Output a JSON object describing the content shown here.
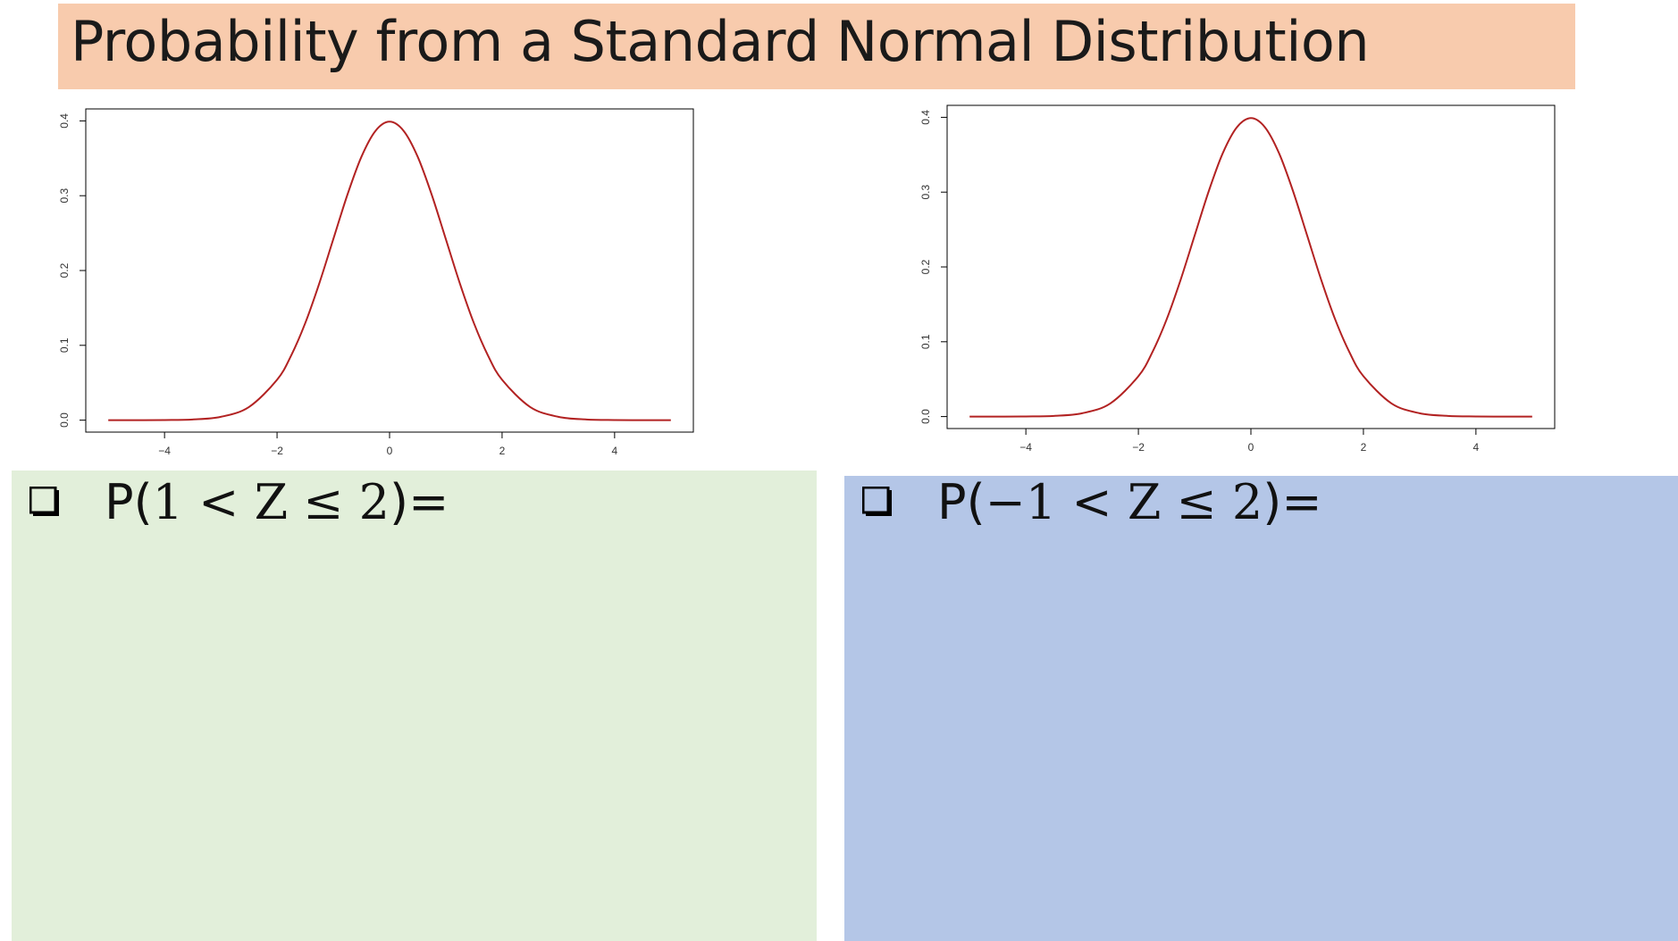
{
  "title": "Probability from a Standard Normal Distribution",
  "colors": {
    "title_bg": "#f8cbad",
    "curve": "#b22222",
    "panel_left_bg": "#e2efda",
    "panel_right_bg": "#b4c6e7"
  },
  "chart_data": [
    {
      "type": "line",
      "title": "",
      "xlabel": "",
      "ylabel": "",
      "xlim": [
        -5.4,
        5.4
      ],
      "ylim": [
        0,
        0.4
      ],
      "x_ticks": [
        "-4",
        "-2",
        "0",
        "2",
        "4"
      ],
      "y_ticks": [
        "0.0",
        "0.1",
        "0.2",
        "0.3",
        "0.4"
      ],
      "grid": false,
      "series": [
        {
          "color": "#b22222",
          "x": [
            -5,
            -4.5,
            -4,
            -3.5,
            -3,
            -2.5,
            -2,
            -1.75,
            -1.5,
            -1.25,
            -1,
            -0.75,
            -0.5,
            -0.25,
            0,
            0.25,
            0.5,
            0.75,
            1,
            1.25,
            1.5,
            1.75,
            2,
            2.5,
            3,
            3.5,
            4,
            4.5,
            5
          ],
          "y": [
            1.5e-06,
            1.6e-05,
            0.000134,
            0.000873,
            0.004432,
            0.017528,
            0.053991,
            0.086277,
            0.129518,
            0.182649,
            0.241971,
            0.301137,
            0.352065,
            0.386668,
            0.398942,
            0.386668,
            0.352065,
            0.301137,
            0.241971,
            0.182649,
            0.129518,
            0.086277,
            0.053991,
            0.017528,
            0.004432,
            0.000873,
            0.000134,
            1.6e-05,
            1.5e-06
          ]
        }
      ]
    },
    {
      "type": "line",
      "title": "",
      "xlabel": "",
      "ylabel": "",
      "xlim": [
        -5.4,
        5.4
      ],
      "ylim": [
        0,
        0.4
      ],
      "x_ticks": [
        "-4",
        "-2",
        "0",
        "2",
        "4"
      ],
      "y_ticks": [
        "0.0",
        "0.1",
        "0.2",
        "0.3",
        "0.4"
      ],
      "grid": false,
      "series": [
        {
          "color": "#b22222",
          "x": [
            -5,
            -4.5,
            -4,
            -3.5,
            -3,
            -2.5,
            -2,
            -1.75,
            -1.5,
            -1.25,
            -1,
            -0.75,
            -0.5,
            -0.25,
            0,
            0.25,
            0.5,
            0.75,
            1,
            1.25,
            1.5,
            1.75,
            2,
            2.5,
            3,
            3.5,
            4,
            4.5,
            5
          ],
          "y": [
            1.5e-06,
            1.6e-05,
            0.000134,
            0.000873,
            0.004432,
            0.017528,
            0.053991,
            0.086277,
            0.129518,
            0.182649,
            0.241971,
            0.301137,
            0.352065,
            0.386668,
            0.398942,
            0.386668,
            0.352065,
            0.301137,
            0.241971,
            0.182649,
            0.129518,
            0.086277,
            0.053991,
            0.017528,
            0.004432,
            0.000873,
            0.000134,
            1.6e-05,
            1.5e-06
          ]
        }
      ]
    }
  ],
  "questions": [
    {
      "icon": "checkbox-icon",
      "prefix": "P(",
      "expression": "1 < Z ≤ 2",
      "suffix": ")="
    },
    {
      "icon": "checkbox-icon",
      "prefix": "P(",
      "expression": "−1 < Z ≤ 2",
      "suffix": ")="
    }
  ]
}
